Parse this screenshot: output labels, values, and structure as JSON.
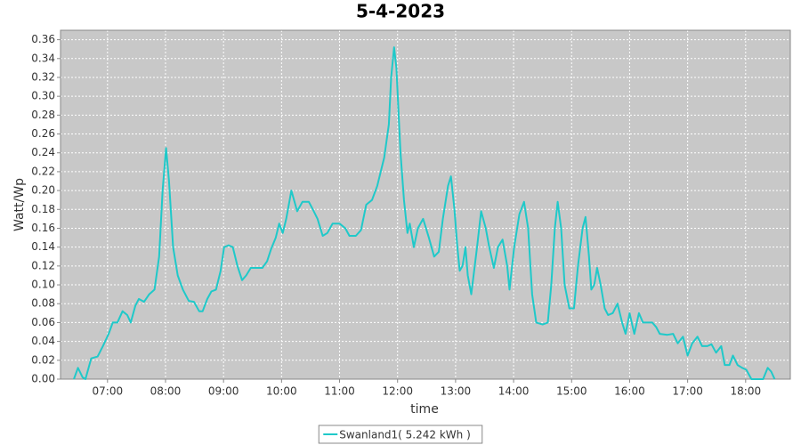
{
  "chart_data": {
    "type": "line",
    "title": "5-4-2023",
    "x_label": "time",
    "y_label": "Watt/Wp",
    "xlim": [
      6.19,
      18.77
    ],
    "ylim": [
      0,
      0.37
    ],
    "xticks": [
      {
        "value": 7,
        "label": "07:00"
      },
      {
        "value": 8,
        "label": "08:00"
      },
      {
        "value": 9,
        "label": "09:00"
      },
      {
        "value": 10,
        "label": "10:00"
      },
      {
        "value": 11,
        "label": "11:00"
      },
      {
        "value": 12,
        "label": "12:00"
      },
      {
        "value": 13,
        "label": "13:00"
      },
      {
        "value": 14,
        "label": "14:00"
      },
      {
        "value": 15,
        "label": "15:00"
      },
      {
        "value": 16,
        "label": "16:00"
      },
      {
        "value": 17,
        "label": "17:00"
      },
      {
        "value": 18,
        "label": "18:00"
      }
    ],
    "yticks": [
      {
        "value": 0,
        "label": "0.00"
      },
      0.02,
      0.04,
      0.06,
      0.08,
      {
        "value": 0.1,
        "label": "0.10"
      },
      0.12,
      0.14,
      0.16,
      0.18,
      {
        "value": 0.2,
        "label": "0.20"
      },
      0.22,
      0.24,
      0.26,
      0.28,
      {
        "value": 0.3,
        "label": "0.30"
      },
      0.32,
      0.34,
      0.36
    ],
    "grid": true,
    "legend": "bottom",
    "x": [
      6.42,
      6.49,
      6.57,
      6.62,
      6.72,
      6.83,
      6.92,
      7.02,
      7.09,
      7.17,
      7.26,
      7.34,
      7.4,
      7.48,
      7.54,
      7.63,
      7.72,
      7.81,
      7.89,
      7.95,
      8.01,
      8.06,
      8.13,
      8.21,
      8.3,
      8.4,
      8.49,
      8.58,
      8.64,
      8.72,
      8.79,
      8.87,
      8.95,
      9.01,
      9.09,
      9.16,
      9.24,
      9.32,
      9.39,
      9.47,
      9.56,
      9.67,
      9.75,
      9.82,
      9.9,
      9.96,
      10.02,
      10.08,
      10.17,
      10.27,
      10.36,
      10.47,
      10.54,
      10.62,
      10.71,
      10.79,
      10.88,
      11.0,
      11.1,
      11.17,
      11.28,
      11.37,
      11.46,
      11.56,
      11.65,
      11.77,
      11.85,
      11.89,
      11.94,
      11.98,
      12.05,
      12.11,
      12.17,
      12.21,
      12.28,
      12.35,
      12.44,
      12.54,
      12.63,
      12.71,
      12.78,
      12.87,
      12.92,
      12.98,
      13.03,
      13.07,
      13.12,
      13.17,
      13.21,
      13.27,
      13.37,
      13.44,
      13.52,
      13.58,
      13.66,
      13.73,
      13.81,
      13.89,
      13.93,
      14.01,
      14.1,
      14.18,
      14.25,
      14.32,
      14.39,
      14.5,
      14.59,
      14.65,
      14.71,
      14.76,
      14.82,
      14.88,
      14.96,
      15.04,
      15.11,
      15.19,
      15.24,
      15.3,
      15.34,
      15.39,
      15.44,
      15.5,
      15.57,
      15.63,
      15.71,
      15.79,
      15.87,
      15.93,
      16.0,
      16.08,
      16.16,
      16.23,
      16.31,
      16.39,
      16.46,
      16.52,
      16.65,
      16.75,
      16.83,
      16.92,
      17.0,
      17.08,
      17.17,
      17.25,
      17.34,
      17.41,
      17.49,
      17.58,
      17.64,
      17.72,
      17.78,
      17.86,
      17.94,
      18.01,
      18.1,
      18.21,
      18.3,
      18.38,
      18.44,
      18.5
    ],
    "series": [
      {
        "name": "Swanland1( 5.242 kWh )",
        "color": "#1fc9c9",
        "values": [
          0.0,
          0.012,
          0.002,
          0.0,
          0.022,
          0.024,
          0.035,
          0.048,
          0.06,
          0.06,
          0.072,
          0.068,
          0.06,
          0.078,
          0.085,
          0.082,
          0.09,
          0.095,
          0.13,
          0.2,
          0.245,
          0.21,
          0.14,
          0.11,
          0.095,
          0.083,
          0.082,
          0.072,
          0.072,
          0.085,
          0.093,
          0.095,
          0.115,
          0.14,
          0.142,
          0.14,
          0.12,
          0.105,
          0.11,
          0.118,
          0.118,
          0.118,
          0.125,
          0.138,
          0.15,
          0.165,
          0.155,
          0.17,
          0.2,
          0.178,
          0.188,
          0.188,
          0.18,
          0.17,
          0.152,
          0.155,
          0.165,
          0.165,
          0.16,
          0.152,
          0.152,
          0.158,
          0.185,
          0.19,
          0.205,
          0.235,
          0.27,
          0.32,
          0.352,
          0.33,
          0.24,
          0.19,
          0.155,
          0.165,
          0.14,
          0.16,
          0.17,
          0.15,
          0.13,
          0.135,
          0.17,
          0.205,
          0.215,
          0.18,
          0.14,
          0.115,
          0.12,
          0.14,
          0.11,
          0.09,
          0.14,
          0.178,
          0.16,
          0.14,
          0.118,
          0.14,
          0.148,
          0.12,
          0.095,
          0.14,
          0.175,
          0.188,
          0.16,
          0.09,
          0.06,
          0.058,
          0.06,
          0.1,
          0.16,
          0.188,
          0.16,
          0.1,
          0.075,
          0.075,
          0.12,
          0.16,
          0.172,
          0.13,
          0.095,
          0.1,
          0.118,
          0.1,
          0.075,
          0.068,
          0.07,
          0.08,
          0.06,
          0.048,
          0.07,
          0.048,
          0.07,
          0.06,
          0.06,
          0.06,
          0.055,
          0.048,
          0.047,
          0.048,
          0.038,
          0.045,
          0.025,
          0.038,
          0.045,
          0.035,
          0.035,
          0.037,
          0.028,
          0.035,
          0.015,
          0.015,
          0.025,
          0.015,
          0.012,
          0.01,
          0.0,
          0.0,
          0.0,
          0.012,
          0.008,
          0.0
        ]
      }
    ]
  }
}
